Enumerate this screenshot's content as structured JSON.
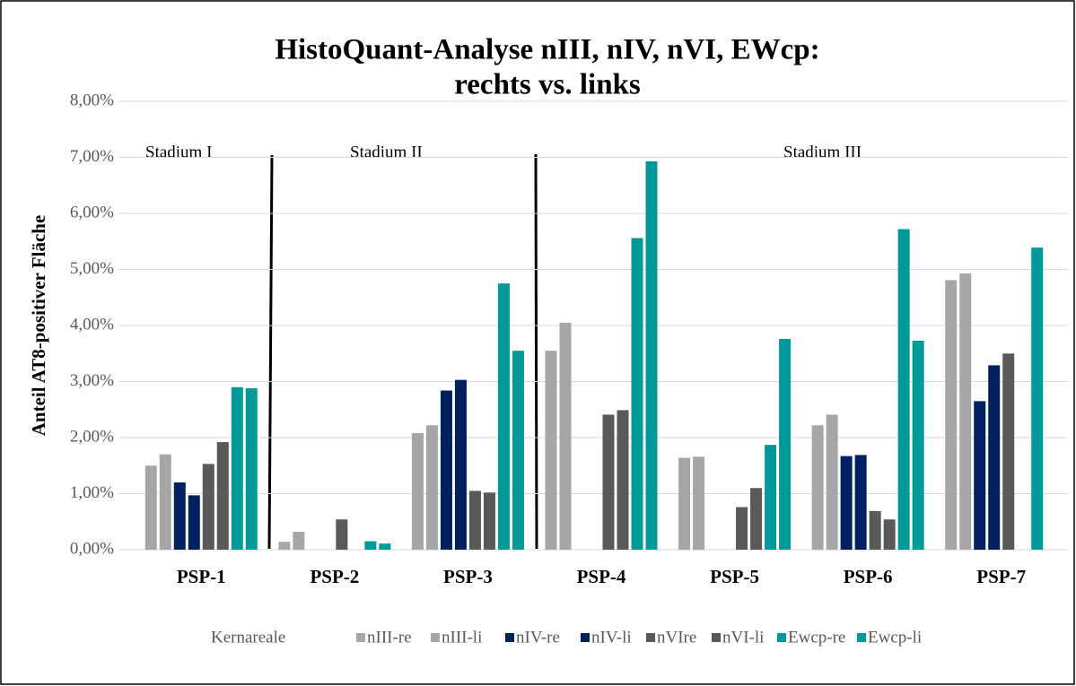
{
  "chart_data": {
    "type": "bar",
    "title": [
      "HistoQuant-Analyse nIII, nIV, nVI, EWcp:",
      "rechts vs. links"
    ],
    "y_label": "Anteil AT8-positiver Fläche",
    "annotations": [
      "Stadium I",
      "Stadium II",
      "Stadium III"
    ],
    "legend_title": "Kernareale",
    "categories": [
      "PSP-1",
      "PSP-2",
      "PSP-3",
      "PSP-4",
      "PSP-5",
      "PSP-6",
      "PSP-7"
    ],
    "series": [
      {
        "name": "nIII-re",
        "color": "#a6a6a6",
        "values": [
          1.5,
          0.14,
          2.08,
          3.55,
          1.64,
          2.22,
          4.81
        ]
      },
      {
        "name": "nIII-li",
        "color": "#a6a6a6",
        "values": [
          1.7,
          0.32,
          2.22,
          4.05,
          1.66,
          2.41,
          4.93
        ]
      },
      {
        "name": "nIV-re",
        "color": "#002060",
        "values": [
          1.2,
          0,
          2.84,
          0,
          0,
          1.67,
          2.65
        ]
      },
      {
        "name": "nIV-li",
        "color": "#002060",
        "values": [
          0.97,
          0,
          3.03,
          0,
          0,
          1.69,
          3.29
        ]
      },
      {
        "name": "nVIre",
        "color": "#595959",
        "values": [
          1.53,
          0.54,
          1.05,
          2.41,
          0.76,
          0.69,
          3.5
        ]
      },
      {
        "name": "nVI-li",
        "color": "#595959",
        "values": [
          1.92,
          0,
          1.02,
          2.49,
          1.1,
          0.54,
          0
        ]
      },
      {
        "name": "Ewcp-re",
        "color": "#009999",
        "values": [
          2.9,
          0.15,
          4.75,
          5.56,
          1.87,
          5.72,
          5.39
        ]
      },
      {
        "name": "Ewcp-li",
        "color": "#009999",
        "values": [
          2.88,
          0.11,
          3.55,
          6.93,
          3.76,
          3.73,
          0
        ]
      }
    ],
    "ylim": [
      0,
      8
    ],
    "yticks": [
      {
        "value": 0,
        "label": "0,00%"
      },
      {
        "value": 1,
        "label": "1,00%"
      },
      {
        "value": 2,
        "label": "2,00%"
      },
      {
        "value": 3,
        "label": "3,00%"
      },
      {
        "value": 4,
        "label": "4,00%"
      },
      {
        "value": 5,
        "label": "5,00%"
      },
      {
        "value": 6,
        "label": "6,00%"
      },
      {
        "value": 7,
        "label": "7,00%"
      },
      {
        "value": 8,
        "label": "8,00%"
      }
    ],
    "grid": true
  }
}
